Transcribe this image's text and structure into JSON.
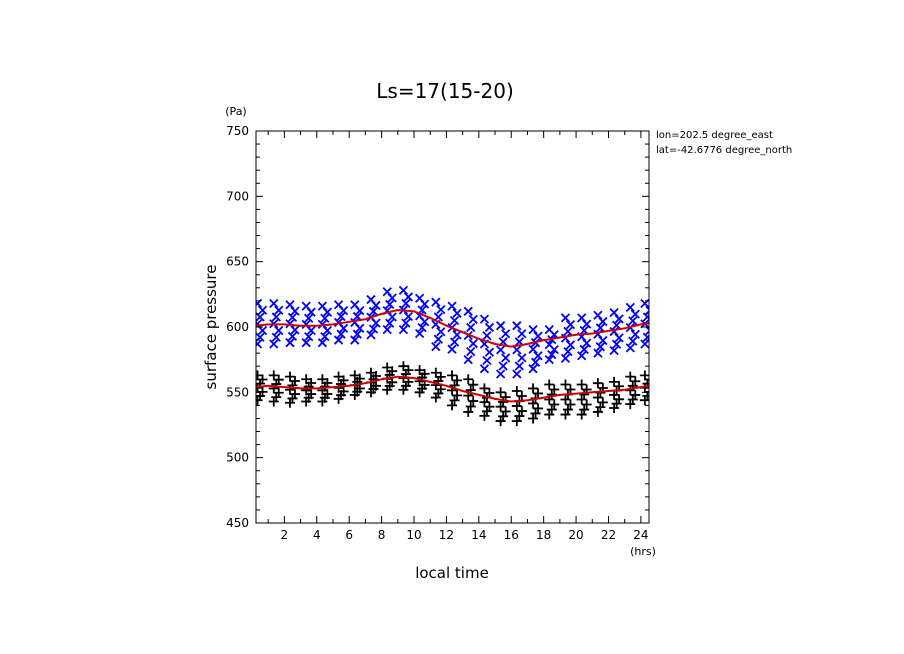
{
  "chart_data": {
    "type": "scatter",
    "title": "Ls=17(15-20)",
    "xlabel": "local time",
    "ylabel": "surface pressure",
    "x_unit": "(hrs)",
    "y_unit": "(Pa)",
    "xlim": [
      0.25,
      24.5
    ],
    "ylim": [
      450,
      750
    ],
    "x_ticks": [
      2,
      4,
      6,
      8,
      10,
      12,
      14,
      16,
      18,
      20,
      22,
      24
    ],
    "y_ticks": [
      450,
      500,
      550,
      600,
      650,
      700,
      750
    ],
    "annotations": [
      "lon=202.5 degree_east",
      "lat=-42.6776 degree_north"
    ],
    "series": [
      {
        "marker": "x",
        "color": "#0000ff",
        "x": [
          0.5,
          1.5,
          2.5,
          3.5,
          4.5,
          5.5,
          6.5,
          7.5,
          8.5,
          9.5,
          10.5,
          11.5,
          12.5,
          13.5,
          14.5,
          15.5,
          16.5,
          17.5,
          18.5,
          19.5,
          20.5,
          21.5,
          22.5,
          23.5,
          24.4
        ],
        "y_min": [
          587,
          587,
          588,
          588,
          588,
          590,
          590,
          594,
          598,
          598,
          595,
          585,
          583,
          575,
          568,
          564,
          564,
          568,
          575,
          576,
          578,
          580,
          582,
          584,
          587
        ],
        "y_max": [
          618,
          618,
          617,
          616,
          616,
          617,
          617,
          621,
          627,
          628,
          622,
          619,
          616,
          612,
          606,
          601,
          601,
          598,
          598,
          607,
          607,
          609,
          611,
          615,
          618
        ]
      },
      {
        "marker": "+",
        "color": "#000000",
        "x": [
          0.5,
          1.5,
          2.5,
          3.5,
          4.5,
          5.5,
          6.5,
          7.5,
          8.5,
          9.5,
          10.5,
          11.5,
          12.5,
          13.5,
          14.5,
          15.5,
          16.5,
          17.5,
          18.5,
          19.5,
          20.5,
          21.5,
          22.5,
          23.5,
          24.4
        ],
        "y_min": [
          544,
          543,
          542,
          543,
          543,
          545,
          548,
          550,
          552,
          552,
          550,
          546,
          540,
          535,
          532,
          528,
          528,
          530,
          533,
          533,
          533,
          535,
          538,
          541,
          544
        ],
        "y_max": [
          563,
          563,
          562,
          560,
          560,
          562,
          563,
          565,
          569,
          570,
          567,
          565,
          563,
          560,
          553,
          550,
          551,
          553,
          556,
          556,
          556,
          557,
          558,
          562,
          563
        ]
      },
      {
        "type": "line",
        "color": "#cc0000",
        "x": [
          0.25,
          1,
          2,
          3,
          4,
          5,
          6,
          7,
          8,
          9,
          10,
          11,
          12,
          13,
          14,
          15,
          16,
          17,
          18,
          19,
          20,
          21,
          22,
          23,
          24,
          24.5
        ],
        "y": [
          601,
          602,
          602,
          601,
          601,
          602,
          604,
          606,
          610,
          613,
          612,
          607,
          601,
          596,
          591,
          587,
          585,
          587,
          590,
          592,
          594,
          595,
          597,
          599,
          602,
          603
        ]
      },
      {
        "type": "line",
        "color": "#cc0000",
        "x": [
          0.25,
          1,
          2,
          3,
          4,
          5,
          6,
          7,
          8,
          9,
          10,
          11,
          12,
          13,
          14,
          15,
          16,
          17,
          18,
          19,
          20,
          21,
          22,
          23,
          24,
          24.5
        ],
        "y": [
          554,
          555,
          554,
          553,
          553,
          554,
          555,
          557,
          560,
          562,
          561,
          558,
          555,
          551,
          548,
          545,
          543,
          544,
          546,
          548,
          549,
          550,
          551,
          552,
          554,
          555
        ]
      }
    ]
  }
}
